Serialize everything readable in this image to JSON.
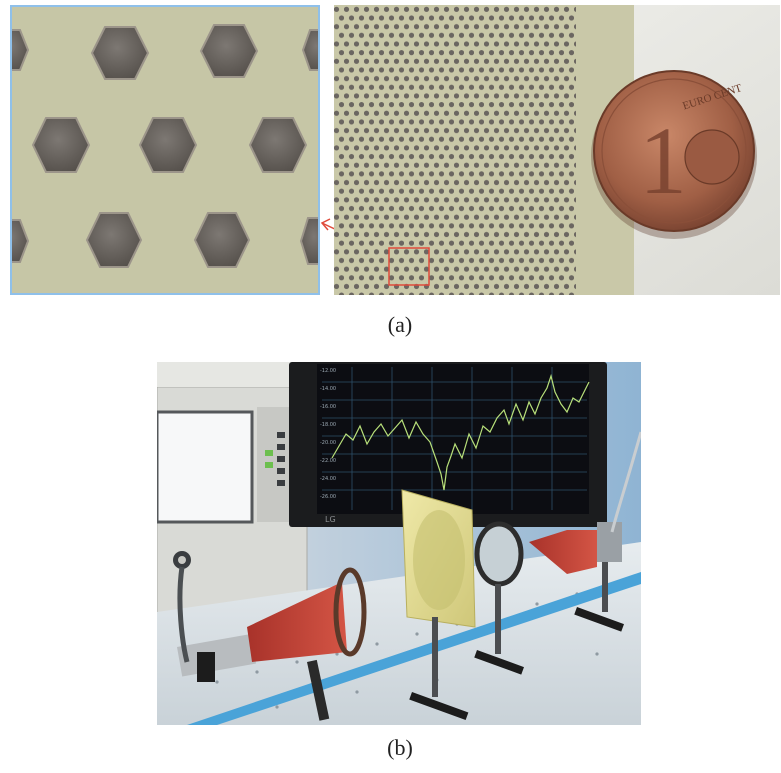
{
  "figure": {
    "panel_a": {
      "label": "(a)",
      "zoom_inset_icon": "hexagon-zoom-icon",
      "coin": {
        "value": "1",
        "text": "EURO CENT"
      }
    },
    "panel_b": {
      "label": "(b)",
      "monitor": {
        "y_ticks": [
          "-12.00",
          "-14.00",
          "-16.00",
          "-18.00",
          "-20.00",
          "-22.00",
          "-24.00",
          "-26.00"
        ],
        "brand": "LG"
      }
    }
  },
  "colors": {
    "board": "#c9c8a8",
    "hex": "#6b6661",
    "inset_border": "#8fc0ea",
    "highlight": "#e04a3a",
    "horn": "#c8473a",
    "trace": "#b8e07a"
  }
}
